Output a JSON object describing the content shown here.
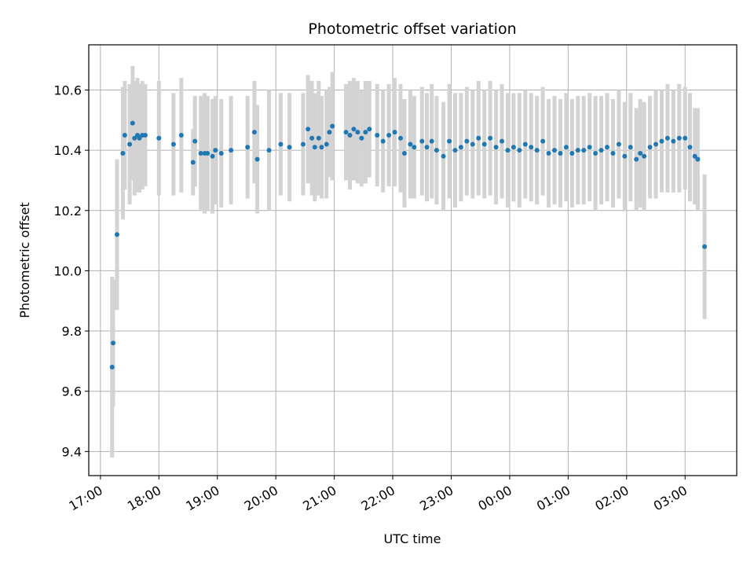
{
  "chart_data": {
    "type": "scatter",
    "title": "Photometric offset variation",
    "xlabel": "UTC time",
    "ylabel": "Photometric offset",
    "x_start": "17:00",
    "xlim": [
      "16:48",
      "03:53"
    ],
    "ylim": [
      9.32,
      10.75
    ],
    "x_ticks": [
      "17:00",
      "18:00",
      "19:00",
      "20:00",
      "21:00",
      "22:00",
      "23:00",
      "00:00",
      "01:00",
      "02:00",
      "03:00"
    ],
    "y_ticks": [
      "9.4",
      "9.6",
      "9.8",
      "10.0",
      "10.2",
      "10.4",
      "10.6"
    ],
    "grid": true,
    "point_color": "#1f77b4",
    "errorbar_color": "#d3d3d3",
    "series": [
      {
        "points": [
          [
            "17:12",
            9.68,
            0.3
          ],
          [
            "17:13",
            9.76,
            0.21
          ],
          [
            "17:17",
            10.12,
            0.25
          ],
          [
            "17:23",
            10.39,
            0.22
          ],
          [
            "17:25",
            10.45,
            0.18
          ],
          [
            "17:30",
            10.42,
            0.2
          ],
          [
            "17:33",
            10.49,
            0.19
          ],
          [
            "17:35",
            10.44,
            0.19
          ],
          [
            "17:38",
            10.45,
            0.19
          ],
          [
            "17:40",
            10.44,
            0.18
          ],
          [
            "17:43",
            10.45,
            0.18
          ],
          [
            "17:46",
            10.45,
            0.17
          ],
          [
            "18:00",
            10.44,
            0.19
          ],
          [
            "18:15",
            10.42,
            0.17
          ],
          [
            "18:23",
            10.45,
            0.19
          ],
          [
            "18:35",
            10.36,
            0.11
          ],
          [
            "18:37",
            10.43,
            0.15
          ],
          [
            "18:43",
            10.39,
            0.19
          ],
          [
            "18:47",
            10.39,
            0.2
          ],
          [
            "18:50",
            10.39,
            0.19
          ],
          [
            "18:55",
            10.38,
            0.19
          ],
          [
            "18:58",
            10.4,
            0.18
          ],
          [
            "19:04",
            10.39,
            0.18
          ],
          [
            "19:14",
            10.4,
            0.18
          ],
          [
            "19:31",
            10.41,
            0.17
          ],
          [
            "19:38",
            10.46,
            0.17
          ],
          [
            "19:41",
            10.37,
            0.18
          ],
          [
            "19:53",
            10.4,
            0.2
          ],
          [
            "20:05",
            10.42,
            0.17
          ],
          [
            "20:14",
            10.41,
            0.18
          ],
          [
            "20:28",
            10.42,
            0.17
          ],
          [
            "20:33",
            10.47,
            0.18
          ],
          [
            "20:37",
            10.44,
            0.19
          ],
          [
            "20:40",
            10.41,
            0.18
          ],
          [
            "20:44",
            10.44,
            0.19
          ],
          [
            "20:47",
            10.41,
            0.17
          ],
          [
            "20:52",
            10.42,
            0.18
          ],
          [
            "20:55",
            10.46,
            0.15
          ],
          [
            "20:58",
            10.48,
            0.18
          ],
          [
            "21:12",
            10.46,
            0.16
          ],
          [
            "21:16",
            10.45,
            0.18
          ],
          [
            "21:20",
            10.47,
            0.17
          ],
          [
            "21:24",
            10.46,
            0.17
          ],
          [
            "21:28",
            10.44,
            0.16
          ],
          [
            "21:32",
            10.46,
            0.17
          ],
          [
            "21:36",
            10.47,
            0.16
          ],
          [
            "21:44",
            10.45,
            0.17
          ],
          [
            "21:50",
            10.43,
            0.17
          ],
          [
            "21:56",
            10.45,
            0.17
          ],
          [
            "22:02",
            10.46,
            0.18
          ],
          [
            "22:08",
            10.44,
            0.18
          ],
          [
            "22:12",
            10.39,
            0.18
          ],
          [
            "22:18",
            10.42,
            0.18
          ],
          [
            "22:22",
            10.41,
            0.17
          ],
          [
            "22:30",
            10.43,
            0.18
          ],
          [
            "22:35",
            10.41,
            0.18
          ],
          [
            "22:40",
            10.43,
            0.19
          ],
          [
            "22:45",
            10.4,
            0.18
          ],
          [
            "22:52",
            10.38,
            0.18
          ],
          [
            "22:58",
            10.43,
            0.19
          ],
          [
            "23:04",
            10.4,
            0.19
          ],
          [
            "23:10",
            10.41,
            0.18
          ],
          [
            "23:16",
            10.43,
            0.18
          ],
          [
            "23:22",
            10.42,
            0.18
          ],
          [
            "23:28",
            10.44,
            0.19
          ],
          [
            "23:34",
            10.42,
            0.18
          ],
          [
            "23:40",
            10.44,
            0.19
          ],
          [
            "23:46",
            10.41,
            0.19
          ],
          [
            "23:52",
            10.43,
            0.19
          ],
          [
            "23:58",
            10.4,
            0.19
          ],
          [
            "00:04",
            10.41,
            0.18
          ],
          [
            "00:10",
            10.4,
            0.19
          ],
          [
            "00:16",
            10.42,
            0.18
          ],
          [
            "00:22",
            10.41,
            0.18
          ],
          [
            "00:28",
            10.4,
            0.18
          ],
          [
            "00:34",
            10.43,
            0.18
          ],
          [
            "00:40",
            10.39,
            0.18
          ],
          [
            "00:46",
            10.4,
            0.18
          ],
          [
            "00:52",
            10.39,
            0.18
          ],
          [
            "00:58",
            10.41,
            0.18
          ],
          [
            "01:04",
            10.39,
            0.18
          ],
          [
            "01:10",
            10.4,
            0.18
          ],
          [
            "01:16",
            10.4,
            0.18
          ],
          [
            "01:22",
            10.41,
            0.18
          ],
          [
            "01:28",
            10.39,
            0.19
          ],
          [
            "01:34",
            10.4,
            0.18
          ],
          [
            "01:40",
            10.41,
            0.18
          ],
          [
            "01:46",
            10.39,
            0.18
          ],
          [
            "01:52",
            10.42,
            0.18
          ],
          [
            "01:58",
            10.38,
            0.18
          ],
          [
            "02:04",
            10.41,
            0.18
          ],
          [
            "02:10",
            10.37,
            0.17
          ],
          [
            "02:14",
            10.39,
            0.18
          ],
          [
            "02:18",
            10.38,
            0.18
          ],
          [
            "02:24",
            10.41,
            0.17
          ],
          [
            "02:30",
            10.42,
            0.18
          ],
          [
            "02:36",
            10.43,
            0.17
          ],
          [
            "02:42",
            10.44,
            0.18
          ],
          [
            "02:48",
            10.43,
            0.17
          ],
          [
            "02:54",
            10.44,
            0.18
          ],
          [
            "03:00",
            10.44,
            0.17
          ],
          [
            "03:05",
            10.41,
            0.18
          ],
          [
            "03:10",
            10.38,
            0.16
          ],
          [
            "03:13",
            10.37,
            0.17
          ],
          [
            "03:20",
            10.08,
            0.24
          ]
        ]
      }
    ]
  }
}
